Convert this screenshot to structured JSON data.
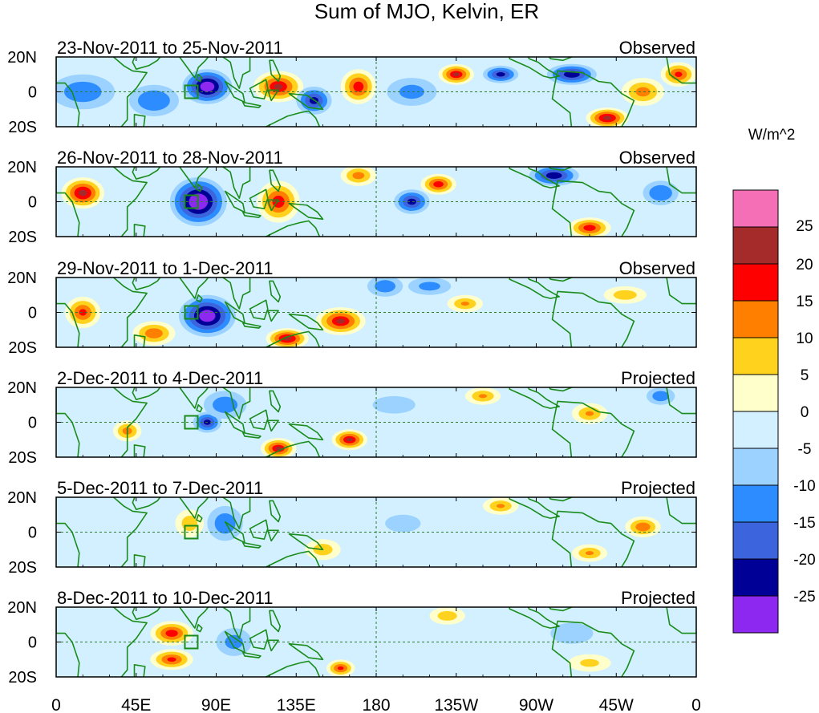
{
  "chart_data": {
    "type": "heatmap",
    "title": "Sum of MJO, Kelvin, ER",
    "units_label": "W/m^2",
    "x_ticks": [
      "0",
      "45E",
      "90E",
      "135E",
      "180",
      "135W",
      "90W",
      "45W",
      "0"
    ],
    "x_tick_lon": [
      0,
      45,
      90,
      135,
      180,
      225,
      270,
      315,
      360
    ],
    "y_ticks": [
      "20N",
      "0",
      "20S"
    ],
    "y_tick_lat": [
      20,
      0,
      -20
    ],
    "colorbar": {
      "labels": [
        "25",
        "20",
        "15",
        "10",
        "5",
        "0",
        "-5",
        "-10",
        "-15",
        "-20",
        "-25"
      ],
      "colors": [
        "#f46fb6",
        "#a52a2a",
        "#ff0000",
        "#ff7f00",
        "#ffd21e",
        "#ffffcc",
        "#d2f0ff",
        "#9bd2ff",
        "#2d8cff",
        "#3c64dc",
        "#000096",
        "#8c28f0"
      ]
    },
    "panels": [
      {
        "date_range": "23-Nov-2011 to 25-Nov-2011",
        "status": "Observed",
        "features": [
          {
            "lon": 85,
            "lat": 3,
            "v": -28,
            "rx": 14,
            "ry": 10
          },
          {
            "lon": 15,
            "lat": 0,
            "v": -12,
            "rx": 18,
            "ry": 10
          },
          {
            "lon": 55,
            "lat": -5,
            "v": -14,
            "rx": 14,
            "ry": 9
          },
          {
            "lon": 125,
            "lat": 3,
            "v": 20,
            "rx": 14,
            "ry": 9
          },
          {
            "lon": 145,
            "lat": -5,
            "v": -20,
            "rx": 10,
            "ry": 8
          },
          {
            "lon": 170,
            "lat": 3,
            "v": 18,
            "rx": 10,
            "ry": 10
          },
          {
            "lon": 200,
            "lat": 0,
            "v": -10,
            "rx": 14,
            "ry": 8
          },
          {
            "lon": 225,
            "lat": 10,
            "v": 20,
            "rx": 10,
            "ry": 6
          },
          {
            "lon": 250,
            "lat": 10,
            "v": -20,
            "rx": 10,
            "ry": 5
          },
          {
            "lon": 290,
            "lat": 10,
            "v": -22,
            "rx": 14,
            "ry": 6
          },
          {
            "lon": 310,
            "lat": -15,
            "v": 22,
            "rx": 12,
            "ry": 6
          },
          {
            "lon": 330,
            "lat": 0,
            "v": 12,
            "rx": 12,
            "ry": 8
          },
          {
            "lon": 350,
            "lat": 10,
            "v": 16,
            "rx": 10,
            "ry": 7
          }
        ]
      },
      {
        "date_range": "26-Nov-2011 to 28-Nov-2011",
        "status": "Observed",
        "features": [
          {
            "lon": 80,
            "lat": 0,
            "v": -30,
            "rx": 16,
            "ry": 14
          },
          {
            "lon": 15,
            "lat": 5,
            "v": 22,
            "rx": 12,
            "ry": 9
          },
          {
            "lon": 125,
            "lat": 0,
            "v": 18,
            "rx": 12,
            "ry": 12
          },
          {
            "lon": 170,
            "lat": 15,
            "v": 12,
            "rx": 10,
            "ry": 6
          },
          {
            "lon": 200,
            "lat": 0,
            "v": -20,
            "rx": 10,
            "ry": 7
          },
          {
            "lon": 215,
            "lat": 10,
            "v": 18,
            "rx": 10,
            "ry": 6
          },
          {
            "lon": 280,
            "lat": 15,
            "v": -22,
            "rx": 14,
            "ry": 6
          },
          {
            "lon": 300,
            "lat": -15,
            "v": 18,
            "rx": 12,
            "ry": 6
          },
          {
            "lon": 340,
            "lat": 5,
            "v": -14,
            "rx": 10,
            "ry": 7
          }
        ]
      },
      {
        "date_range": "29-Nov-2011 to 1-Dec-2011",
        "status": "Observed",
        "features": [
          {
            "lon": 85,
            "lat": -2,
            "v": -28,
            "rx": 16,
            "ry": 12
          },
          {
            "lon": 15,
            "lat": 0,
            "v": 16,
            "rx": 10,
            "ry": 9
          },
          {
            "lon": 55,
            "lat": -12,
            "v": 14,
            "rx": 12,
            "ry": 7
          },
          {
            "lon": 130,
            "lat": -15,
            "v": 22,
            "rx": 12,
            "ry": 6
          },
          {
            "lon": 160,
            "lat": -5,
            "v": 20,
            "rx": 14,
            "ry": 8
          },
          {
            "lon": 185,
            "lat": 15,
            "v": -12,
            "rx": 10,
            "ry": 6
          },
          {
            "lon": 210,
            "lat": 15,
            "v": -10,
            "rx": 12,
            "ry": 5
          },
          {
            "lon": 230,
            "lat": 5,
            "v": 10,
            "rx": 10,
            "ry": 5
          },
          {
            "lon": 320,
            "lat": 10,
            "v": 8,
            "rx": 12,
            "ry": 5
          }
        ]
      },
      {
        "date_range": "2-Dec-2011 to 4-Dec-2011",
        "status": "Projected",
        "features": [
          {
            "lon": 85,
            "lat": 0,
            "v": -20,
            "rx": 8,
            "ry": 6
          },
          {
            "lon": 95,
            "lat": 10,
            "v": -12,
            "rx": 12,
            "ry": 8
          },
          {
            "lon": 40,
            "lat": -5,
            "v": 12,
            "rx": 8,
            "ry": 6
          },
          {
            "lon": 125,
            "lat": -15,
            "v": 20,
            "rx": 10,
            "ry": 6
          },
          {
            "lon": 165,
            "lat": -10,
            "v": 20,
            "rx": 10,
            "ry": 6
          },
          {
            "lon": 190,
            "lat": 10,
            "v": -8,
            "rx": 12,
            "ry": 5
          },
          {
            "lon": 240,
            "lat": 15,
            "v": 10,
            "rx": 10,
            "ry": 5
          },
          {
            "lon": 300,
            "lat": 5,
            "v": 10,
            "rx": 10,
            "ry": 6
          },
          {
            "lon": 340,
            "lat": 15,
            "v": -12,
            "rx": 8,
            "ry": 5
          }
        ]
      },
      {
        "date_range": "5-Dec-2011 to 7-Dec-2011",
        "status": "Projected",
        "features": [
          {
            "lon": 75,
            "lat": 5,
            "v": 8,
            "rx": 8,
            "ry": 8
          },
          {
            "lon": 95,
            "lat": 5,
            "v": -12,
            "rx": 10,
            "ry": 10
          },
          {
            "lon": 150,
            "lat": -10,
            "v": 8,
            "rx": 10,
            "ry": 6
          },
          {
            "lon": 195,
            "lat": 5,
            "v": -8,
            "rx": 10,
            "ry": 5
          },
          {
            "lon": 250,
            "lat": 15,
            "v": 10,
            "rx": 10,
            "ry": 5
          },
          {
            "lon": 300,
            "lat": -12,
            "v": 10,
            "rx": 10,
            "ry": 5
          },
          {
            "lon": 330,
            "lat": 3,
            "v": 14,
            "rx": 10,
            "ry": 6
          }
        ]
      },
      {
        "date_range": "8-Dec-2011 to 10-Dec-2011",
        "status": "Projected",
        "features": [
          {
            "lon": 65,
            "lat": 5,
            "v": 18,
            "rx": 12,
            "ry": 7
          },
          {
            "lon": 65,
            "lat": -10,
            "v": 16,
            "rx": 12,
            "ry": 6
          },
          {
            "lon": 100,
            "lat": 0,
            "v": -10,
            "rx": 10,
            "ry": 8
          },
          {
            "lon": 160,
            "lat": -15,
            "v": 16,
            "rx": 8,
            "ry": 5
          },
          {
            "lon": 220,
            "lat": 15,
            "v": 8,
            "rx": 10,
            "ry": 5
          },
          {
            "lon": 290,
            "lat": 5,
            "v": -6,
            "rx": 12,
            "ry": 6
          },
          {
            "lon": 300,
            "lat": -12,
            "v": 6,
            "rx": 12,
            "ry": 5
          }
        ]
      }
    ]
  }
}
